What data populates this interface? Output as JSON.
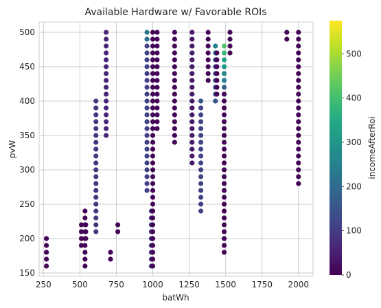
{
  "chart_data": {
    "type": "scatter",
    "title": "Available Hardware w/ Favorable ROIs",
    "xlabel": "batWh",
    "ylabel": "pvW",
    "xlim": [
      220,
      2100
    ],
    "ylim": [
      145,
      515
    ],
    "x_ticks": [
      250,
      500,
      750,
      1000,
      1250,
      1500,
      1750,
      2000
    ],
    "y_ticks": [
      150,
      200,
      250,
      300,
      350,
      400,
      450,
      500
    ],
    "grid": true,
    "colorbar": {
      "label": "incomeAfterRoi",
      "range": [
        0,
        575
      ],
      "ticks": [
        0,
        100,
        200,
        300,
        400,
        500
      ],
      "colormap": "viridis"
    },
    "groups": [
      {
        "x": 270,
        "y_from": 160,
        "y_to": 200,
        "step": 10,
        "value": 5
      },
      {
        "x": 510,
        "y_from": 190,
        "y_to": 220,
        "step": 10,
        "value": 5
      },
      {
        "x": 535,
        "y_from": 160,
        "y_to": 240,
        "step": 10,
        "value": 5
      },
      {
        "x": 540,
        "y_from": 200,
        "y_to": 220,
        "step": 10,
        "value": 5
      },
      {
        "x": 610,
        "y_from": 210,
        "y_to": 400,
        "step": 10,
        "value": 90
      },
      {
        "x": 680,
        "y_from": 350,
        "y_to": 500,
        "step": 10,
        "value": 60
      },
      {
        "x": 710,
        "y_from": 170,
        "y_to": 180,
        "step": 10,
        "value": 5
      },
      {
        "x": 760,
        "y_from": 210,
        "y_to": 220,
        "step": 10,
        "value": 5
      },
      {
        "x": 960,
        "y_from": 270,
        "y_to": 500,
        "step": 10,
        "value": 110
      },
      {
        "x": 990,
        "y_from": 160,
        "y_to": 240,
        "step": 10,
        "value": 100
      },
      {
        "x": 1000,
        "y_from": 160,
        "y_to": 500,
        "step": 10,
        "value": 5
      },
      {
        "x": 1030,
        "y_from": 360,
        "y_to": 500,
        "step": 10,
        "value": 5
      },
      {
        "x": 1150,
        "y_from": 340,
        "y_to": 500,
        "step": 10,
        "value": 5
      },
      {
        "x": 1270,
        "y_from": 310,
        "y_to": 500,
        "step": 10,
        "value": 40
      },
      {
        "x": 1330,
        "y_from": 240,
        "y_to": 400,
        "step": 10,
        "value": 110
      },
      {
        "x": 1380,
        "y_from": 430,
        "y_to": 500,
        "step": 10,
        "value": 5
      },
      {
        "x": 1430,
        "y_from": 400,
        "y_to": 480,
        "step": 10,
        "value": 150
      },
      {
        "x": 1440,
        "y_from": 410,
        "y_to": 470,
        "step": 10,
        "value": 5
      },
      {
        "x": 1490,
        "y_from": 180,
        "y_to": 480,
        "step": 10,
        "value": 5
      },
      {
        "x": 1530,
        "y_from": 470,
        "y_to": 500,
        "step": 10,
        "value": 5
      },
      {
        "x": 1920,
        "y_from": 490,
        "y_to": 500,
        "step": 10,
        "value": 5
      },
      {
        "x": 2000,
        "y_from": 280,
        "y_to": 500,
        "step": 10,
        "value": 5
      }
    ],
    "highlights": [
      {
        "x": 960,
        "y": 500,
        "value": 230
      },
      {
        "x": 960,
        "y": 490,
        "value": 200
      },
      {
        "x": 1330,
        "y": 400,
        "value": 150
      },
      {
        "x": 1430,
        "y": 480,
        "value": 250
      },
      {
        "x": 1430,
        "y": 470,
        "value": 230
      },
      {
        "x": 1490,
        "y": 480,
        "value": 420
      },
      {
        "x": 1490,
        "y": 470,
        "value": 380
      },
      {
        "x": 1490,
        "y": 460,
        "value": 330
      },
      {
        "x": 1490,
        "y": 450,
        "value": 300
      },
      {
        "x": 1490,
        "y": 440,
        "value": 270
      },
      {
        "x": 1490,
        "y": 430,
        "value": 240
      },
      {
        "x": 1490,
        "y": 420,
        "value": 180
      }
    ]
  }
}
